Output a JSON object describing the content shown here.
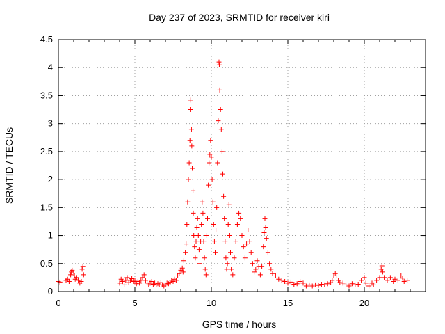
{
  "chart_data": {
    "type": "scatter",
    "title": "Day 237 of 2023, SRMTID for receiver kiri",
    "xlabel": "GPS time / hours",
    "ylabel": "SRMTID / TECUs",
    "xlim": [
      0,
      24
    ],
    "ylim": [
      0,
      4.5
    ],
    "x_ticks": [
      0,
      5,
      10,
      15,
      20
    ],
    "x_tick_labels": [
      "0",
      "5",
      "10",
      "15",
      "20"
    ],
    "y_ticks": [
      0,
      0.5,
      1,
      1.5,
      2,
      2.5,
      3,
      3.5,
      4,
      4.5
    ],
    "y_tick_labels": [
      "0",
      "0.5",
      "1",
      "1.5",
      "2",
      "2.5",
      "3",
      "3.5",
      "4",
      "4.5"
    ],
    "grid": true,
    "marker": "+",
    "color": "#ff0000",
    "series": [
      {
        "name": "SRMTID",
        "points": [
          [
            0.0,
            0.18
          ],
          [
            0.1,
            0.17
          ],
          [
            0.5,
            0.2
          ],
          [
            0.6,
            0.22
          ],
          [
            0.7,
            0.18
          ],
          [
            0.8,
            0.3
          ],
          [
            0.85,
            0.35
          ],
          [
            0.9,
            0.38
          ],
          [
            1.0,
            0.33
          ],
          [
            1.05,
            0.28
          ],
          [
            1.1,
            0.22
          ],
          [
            1.2,
            0.25
          ],
          [
            1.3,
            0.2
          ],
          [
            1.4,
            0.15
          ],
          [
            1.5,
            0.18
          ],
          [
            1.55,
            0.4
          ],
          [
            1.6,
            0.45
          ],
          [
            1.65,
            0.3
          ],
          [
            4.0,
            0.15
          ],
          [
            4.1,
            0.22
          ],
          [
            4.2,
            0.18
          ],
          [
            4.3,
            0.12
          ],
          [
            4.4,
            0.2
          ],
          [
            4.5,
            0.25
          ],
          [
            4.6,
            0.16
          ],
          [
            4.7,
            0.2
          ],
          [
            4.8,
            0.23
          ],
          [
            4.9,
            0.18
          ],
          [
            5.0,
            0.2
          ],
          [
            5.1,
            0.14
          ],
          [
            5.2,
            0.18
          ],
          [
            5.3,
            0.15
          ],
          [
            5.4,
            0.2
          ],
          [
            5.5,
            0.25
          ],
          [
            5.6,
            0.3
          ],
          [
            5.7,
            0.2
          ],
          [
            5.8,
            0.15
          ],
          [
            5.9,
            0.12
          ],
          [
            6.0,
            0.15
          ],
          [
            6.1,
            0.18
          ],
          [
            6.2,
            0.13
          ],
          [
            6.3,
            0.15
          ],
          [
            6.4,
            0.12
          ],
          [
            6.5,
            0.14
          ],
          [
            6.6,
            0.12
          ],
          [
            6.7,
            0.16
          ],
          [
            6.8,
            0.12
          ],
          [
            6.9,
            0.1
          ],
          [
            7.0,
            0.12
          ],
          [
            7.1,
            0.15
          ],
          [
            7.2,
            0.14
          ],
          [
            7.3,
            0.17
          ],
          [
            7.4,
            0.2
          ],
          [
            7.5,
            0.18
          ],
          [
            7.6,
            0.22
          ],
          [
            7.7,
            0.2
          ],
          [
            7.8,
            0.28
          ],
          [
            7.9,
            0.32
          ],
          [
            8.0,
            0.38
          ],
          [
            8.1,
            0.42
          ],
          [
            8.15,
            0.35
          ],
          [
            8.2,
            0.55
          ],
          [
            8.3,
            0.7
          ],
          [
            8.35,
            0.85
          ],
          [
            8.4,
            1.2
          ],
          [
            8.45,
            1.6
          ],
          [
            8.5,
            2.0
          ],
          [
            8.55,
            2.3
          ],
          [
            8.6,
            2.7
          ],
          [
            8.62,
            3.25
          ],
          [
            8.65,
            3.42
          ],
          [
            8.7,
            2.9
          ],
          [
            8.72,
            2.6
          ],
          [
            8.75,
            2.2
          ],
          [
            8.8,
            1.8
          ],
          [
            8.82,
            1.4
          ],
          [
            8.85,
            1.0
          ],
          [
            8.9,
            0.8
          ],
          [
            8.95,
            0.6
          ],
          [
            9.0,
            0.9
          ],
          [
            9.05,
            1.15
          ],
          [
            9.1,
            1.3
          ],
          [
            9.15,
            1.0
          ],
          [
            9.2,
            0.75
          ],
          [
            9.25,
            0.5
          ],
          [
            9.3,
            0.9
          ],
          [
            9.35,
            1.2
          ],
          [
            9.4,
            1.6
          ],
          [
            9.45,
            1.4
          ],
          [
            9.5,
            0.9
          ],
          [
            9.55,
            0.6
          ],
          [
            9.6,
            0.4
          ],
          [
            9.65,
            0.3
          ],
          [
            9.7,
            1.0
          ],
          [
            9.75,
            1.3
          ],
          [
            9.8,
            1.9
          ],
          [
            9.85,
            2.3
          ],
          [
            9.9,
            2.45
          ],
          [
            9.95,
            2.7
          ],
          [
            10.0,
            2.4
          ],
          [
            10.05,
            2.0
          ],
          [
            10.1,
            1.6
          ],
          [
            10.15,
            1.2
          ],
          [
            10.2,
            0.9
          ],
          [
            10.25,
            0.7
          ],
          [
            10.3,
            1.1
          ],
          [
            10.35,
            1.5
          ],
          [
            10.4,
            2.3
          ],
          [
            10.45,
            3.05
          ],
          [
            10.5,
            4.1
          ],
          [
            10.52,
            4.05
          ],
          [
            10.55,
            3.6
          ],
          [
            10.6,
            3.25
          ],
          [
            10.65,
            2.9
          ],
          [
            10.7,
            2.5
          ],
          [
            10.75,
            2.1
          ],
          [
            10.8,
            1.7
          ],
          [
            10.85,
            1.3
          ],
          [
            10.9,
            0.9
          ],
          [
            10.95,
            0.6
          ],
          [
            11.0,
            0.4
          ],
          [
            11.05,
            0.5
          ],
          [
            11.1,
            1.2
          ],
          [
            11.15,
            1.55
          ],
          [
            11.2,
            1.0
          ],
          [
            11.25,
            0.7
          ],
          [
            11.3,
            0.4
          ],
          [
            11.4,
            0.3
          ],
          [
            11.5,
            0.6
          ],
          [
            11.6,
            0.9
          ],
          [
            11.7,
            1.2
          ],
          [
            11.8,
            1.4
          ],
          [
            11.9,
            1.3
          ],
          [
            12.0,
            1.0
          ],
          [
            12.1,
            0.8
          ],
          [
            12.2,
            0.6
          ],
          [
            12.3,
            0.85
          ],
          [
            12.4,
            1.1
          ],
          [
            12.5,
            0.9
          ],
          [
            12.6,
            0.7
          ],
          [
            12.7,
            0.5
          ],
          [
            12.8,
            0.35
          ],
          [
            12.9,
            0.4
          ],
          [
            13.0,
            0.55
          ],
          [
            13.1,
            0.45
          ],
          [
            13.2,
            0.3
          ],
          [
            13.3,
            0.45
          ],
          [
            13.4,
            0.8
          ],
          [
            13.45,
            1.05
          ],
          [
            13.5,
            1.3
          ],
          [
            13.55,
            1.15
          ],
          [
            13.6,
            0.95
          ],
          [
            13.7,
            0.7
          ],
          [
            13.8,
            0.5
          ],
          [
            13.9,
            0.4
          ],
          [
            14.0,
            0.32
          ],
          [
            14.2,
            0.28
          ],
          [
            14.4,
            0.22
          ],
          [
            14.6,
            0.2
          ],
          [
            14.8,
            0.18
          ],
          [
            15.0,
            0.15
          ],
          [
            15.2,
            0.17
          ],
          [
            15.4,
            0.13
          ],
          [
            15.6,
            0.14
          ],
          [
            15.8,
            0.18
          ],
          [
            16.0,
            0.15
          ],
          [
            16.2,
            0.1
          ],
          [
            16.4,
            0.12
          ],
          [
            16.6,
            0.1
          ],
          [
            16.8,
            0.12
          ],
          [
            17.0,
            0.11
          ],
          [
            17.2,
            0.13
          ],
          [
            17.4,
            0.12
          ],
          [
            17.6,
            0.14
          ],
          [
            17.8,
            0.16
          ],
          [
            17.9,
            0.2
          ],
          [
            18.0,
            0.28
          ],
          [
            18.1,
            0.32
          ],
          [
            18.2,
            0.28
          ],
          [
            18.3,
            0.2
          ],
          [
            18.4,
            0.16
          ],
          [
            18.6,
            0.15
          ],
          [
            18.8,
            0.12
          ],
          [
            19.0,
            0.1
          ],
          [
            19.2,
            0.14
          ],
          [
            19.4,
            0.12
          ],
          [
            19.6,
            0.13
          ],
          [
            19.8,
            0.2
          ],
          [
            20.0,
            0.25
          ],
          [
            20.1,
            0.15
          ],
          [
            20.3,
            0.1
          ],
          [
            20.5,
            0.15
          ],
          [
            20.6,
            0.12
          ],
          [
            20.8,
            0.2
          ],
          [
            21.0,
            0.25
          ],
          [
            21.1,
            0.4
          ],
          [
            21.15,
            0.46
          ],
          [
            21.2,
            0.35
          ],
          [
            21.3,
            0.25
          ],
          [
            21.5,
            0.2
          ],
          [
            21.7,
            0.25
          ],
          [
            21.9,
            0.18
          ],
          [
            22.0,
            0.22
          ],
          [
            22.2,
            0.2
          ],
          [
            22.4,
            0.28
          ],
          [
            22.5,
            0.24
          ],
          [
            22.6,
            0.18
          ],
          [
            22.8,
            0.2
          ]
        ]
      }
    ]
  }
}
